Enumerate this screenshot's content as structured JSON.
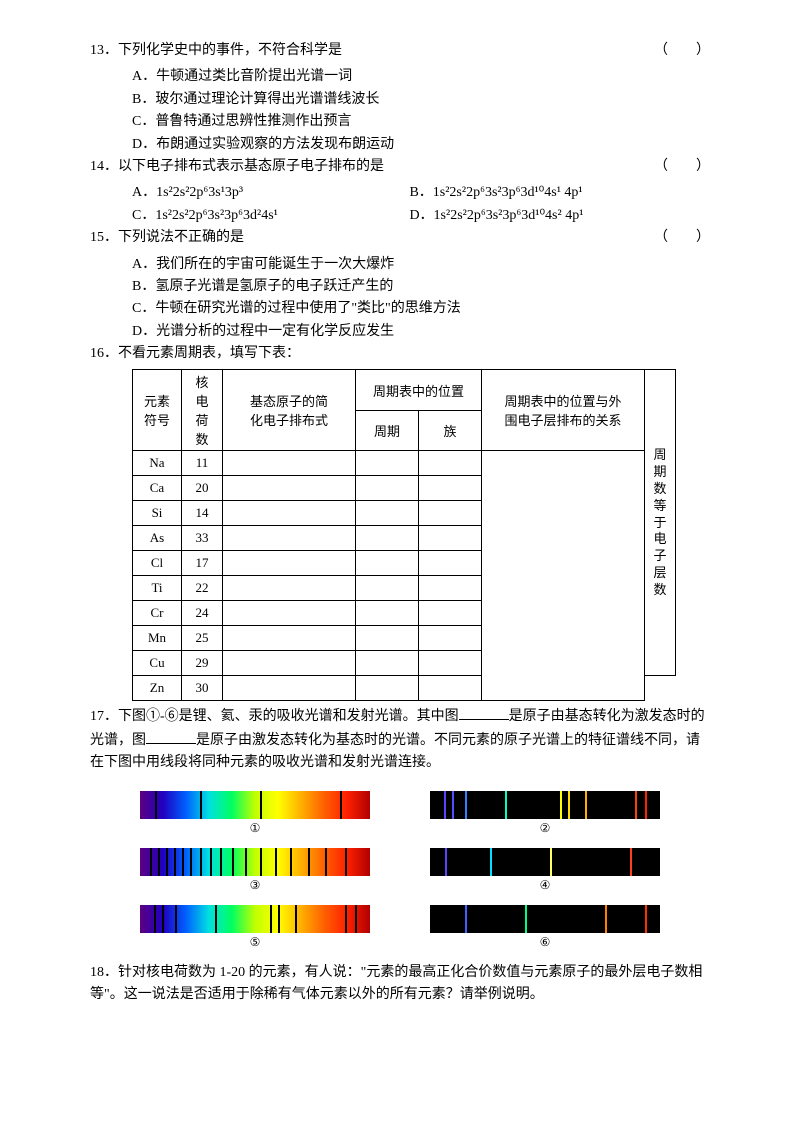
{
  "q13": {
    "num": "13．",
    "stem": "下列化学史中的事件，不符合科学是",
    "paren": "（　　）",
    "opts": {
      "A": "A．牛顿通过类比音阶提出光谱一词",
      "B": "B．玻尔通过理论计算得出光谱谱线波长",
      "C": "C．普鲁特通过思辨性推测作出预言",
      "D": "D．布朗通过实验观察的方法发现布朗运动"
    }
  },
  "q14": {
    "num": "14．",
    "stem": "以下电子排布式表示基态原子电子排布的是",
    "paren": "（　　）",
    "opts": {
      "A": "A．1s²2s²2p⁶3s¹3p³",
      "B": "B．1s²2s²2p⁶3s²3p⁶3d¹⁰4s¹ 4p¹",
      "C": "C．1s²2s²2p⁶3s²3p⁶3d²4s¹",
      "D": "D．1s²2s²2p⁶3s²3p⁶3d¹⁰4s² 4p¹"
    }
  },
  "q15": {
    "num": "15．",
    "stem": "下列说法不正确的是",
    "paren": "（　　）",
    "opts": {
      "A": "A．我们所在的宇宙可能诞生于一次大爆炸",
      "B": "B．氢原子光谱是氢原子的电子跃迁产生的",
      "C": "C．牛顿在研究光谱的过程中使用了\"类比\"的思维方法",
      "D": "D．光谱分析的过程中一定有化学反应发生"
    }
  },
  "q16": {
    "num": "16．",
    "stem": "不看元素周期表，填写下表：",
    "headers": {
      "element": "元素\n符号",
      "charge": "核\n电\n荷\n数",
      "config": "基态原子的简\n化电子排布式",
      "pos": "周期表中的位置",
      "period": "周期",
      "group": "族",
      "relation": "周期表中的位置与外\n围电子层排布的关系",
      "side": "周\n期\n数\n等\n于\n电\n子\n层\n数"
    },
    "rows": [
      {
        "el": "Na",
        "z": "11"
      },
      {
        "el": "Ca",
        "z": "20"
      },
      {
        "el": "Si",
        "z": "14"
      },
      {
        "el": "As",
        "z": "33"
      },
      {
        "el": "Cl",
        "z": "17"
      },
      {
        "el": "Ti",
        "z": "22"
      },
      {
        "el": "Cr",
        "z": "24"
      },
      {
        "el": "Mn",
        "z": "25"
      },
      {
        "el": "Cu",
        "z": "29"
      },
      {
        "el": "Zn",
        "z": "30"
      }
    ]
  },
  "q17": {
    "num": "17．",
    "text1": "下图①-⑥是锂、氦、汞的吸收光谱和发射光谱。其中图",
    "text2": "是原子由基态转化为激发态时的光谱，图",
    "text3": "是原子由激发态转化为基态时的光谱。不同元素的原子光谱上的特征谱线不同，请在下图中用线段将同种元素的吸收光谱和发射光谱连接。",
    "labels": {
      "1": "①",
      "2": "②",
      "3": "③",
      "4": "④",
      "5": "⑤",
      "6": "⑥"
    }
  },
  "q18": {
    "num": "18．",
    "stem": "针对核电荷数为 1-20 的元素，有人说：\"元素的最高正化合价数值与元素原子的最外层电子数相等\"。这一说法是否适用于除稀有气体元素以外的所有元素？请举例说明。"
  },
  "spectra": {
    "s1": {
      "type": "absorption",
      "lines": [
        {
          "pos": 15,
          "c": "#000"
        },
        {
          "pos": 60,
          "c": "#000"
        },
        {
          "pos": 120,
          "c": "#000"
        },
        {
          "pos": 200,
          "c": "#000"
        }
      ]
    },
    "s2": {
      "type": "emission",
      "lines": [
        {
          "pos": 14,
          "c": "#6040ff"
        },
        {
          "pos": 22,
          "c": "#5050ff"
        },
        {
          "pos": 35,
          "c": "#3080ff"
        },
        {
          "pos": 75,
          "c": "#00ffc0"
        },
        {
          "pos": 130,
          "c": "#ffff00"
        },
        {
          "pos": 138,
          "c": "#ffe000"
        },
        {
          "pos": 155,
          "c": "#ffb000"
        },
        {
          "pos": 205,
          "c": "#ff4000"
        },
        {
          "pos": 215,
          "c": "#ff2000"
        }
      ]
    },
    "s3": {
      "type": "absorption",
      "lines": [
        {
          "pos": 10,
          "c": "#000"
        },
        {
          "pos": 18,
          "c": "#000"
        },
        {
          "pos": 26,
          "c": "#000"
        },
        {
          "pos": 34,
          "c": "#000"
        },
        {
          "pos": 42,
          "c": "#000"
        },
        {
          "pos": 50,
          "c": "#000"
        },
        {
          "pos": 60,
          "c": "#000"
        },
        {
          "pos": 70,
          "c": "#000"
        },
        {
          "pos": 80,
          "c": "#000"
        },
        {
          "pos": 92,
          "c": "#000"
        },
        {
          "pos": 105,
          "c": "#000"
        },
        {
          "pos": 120,
          "c": "#000"
        },
        {
          "pos": 135,
          "c": "#000"
        },
        {
          "pos": 150,
          "c": "#000"
        },
        {
          "pos": 168,
          "c": "#000"
        },
        {
          "pos": 185,
          "c": "#000"
        },
        {
          "pos": 205,
          "c": "#000"
        }
      ]
    },
    "s4": {
      "type": "emission",
      "lines": [
        {
          "pos": 15,
          "c": "#6040ff"
        },
        {
          "pos": 60,
          "c": "#00e0ff"
        },
        {
          "pos": 120,
          "c": "#ffff60"
        },
        {
          "pos": 200,
          "c": "#ff4020"
        }
      ]
    },
    "s5": {
      "type": "absorption",
      "lines": [
        {
          "pos": 14,
          "c": "#000"
        },
        {
          "pos": 22,
          "c": "#000"
        },
        {
          "pos": 35,
          "c": "#000"
        },
        {
          "pos": 75,
          "c": "#000"
        },
        {
          "pos": 130,
          "c": "#000"
        },
        {
          "pos": 138,
          "c": "#000"
        },
        {
          "pos": 155,
          "c": "#000"
        },
        {
          "pos": 205,
          "c": "#000"
        },
        {
          "pos": 215,
          "c": "#000"
        }
      ]
    },
    "s6": {
      "type": "emission",
      "lines": [
        {
          "pos": 35,
          "c": "#4060ff"
        },
        {
          "pos": 95,
          "c": "#00ff80"
        },
        {
          "pos": 175,
          "c": "#ff8000"
        },
        {
          "pos": 215,
          "c": "#ff3000"
        }
      ]
    }
  }
}
